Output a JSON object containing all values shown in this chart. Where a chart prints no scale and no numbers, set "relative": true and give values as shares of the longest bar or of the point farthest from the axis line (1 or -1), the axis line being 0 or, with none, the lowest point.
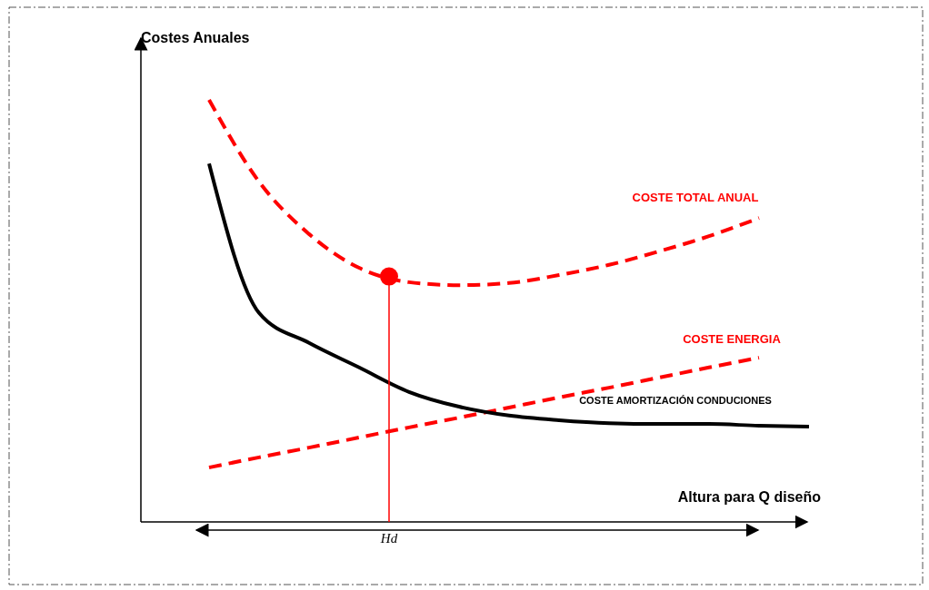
{
  "chart_data": {
    "type": "line",
    "relative": true,
    "ylabel": "Costes Anuales",
    "xlabel": "Altura para Q diseño",
    "annotations": [
      "Hd"
    ],
    "categories": [
      null,
      null,
      null,
      null,
      null,
      null,
      null,
      null,
      null,
      null,
      null,
      null,
      null
    ],
    "series": [
      {
        "name": "COSTE TOTAL ANUAL",
        "color": "#ff0000",
        "line_style": "dashed",
        "values": [
          1,
          0.806,
          0.682,
          0.602,
          0.568,
          0.561,
          0.566,
          0.585,
          0.609,
          0.641,
          0.677,
          0.72,
          null
        ]
      },
      {
        "name": "COSTE ENERGIA",
        "color": "#ff0000",
        "line_style": "dashed",
        "values": [
          0.129,
          0.153,
          0.176,
          0.2,
          0.224,
          0.247,
          0.271,
          0.295,
          0.318,
          0.342,
          0.366,
          0.389,
          null
        ]
      },
      {
        "name": "COSTE AMORTIZACIÓN CONDUCIONES",
        "color": "#000000",
        "line_style": "solid",
        "values": [
          0.849,
          0.495,
          0.424,
          0.366,
          0.308,
          0.273,
          0.252,
          0.241,
          0.234,
          0.232,
          0.232,
          0.228,
          0.226
        ]
      }
    ]
  }
}
